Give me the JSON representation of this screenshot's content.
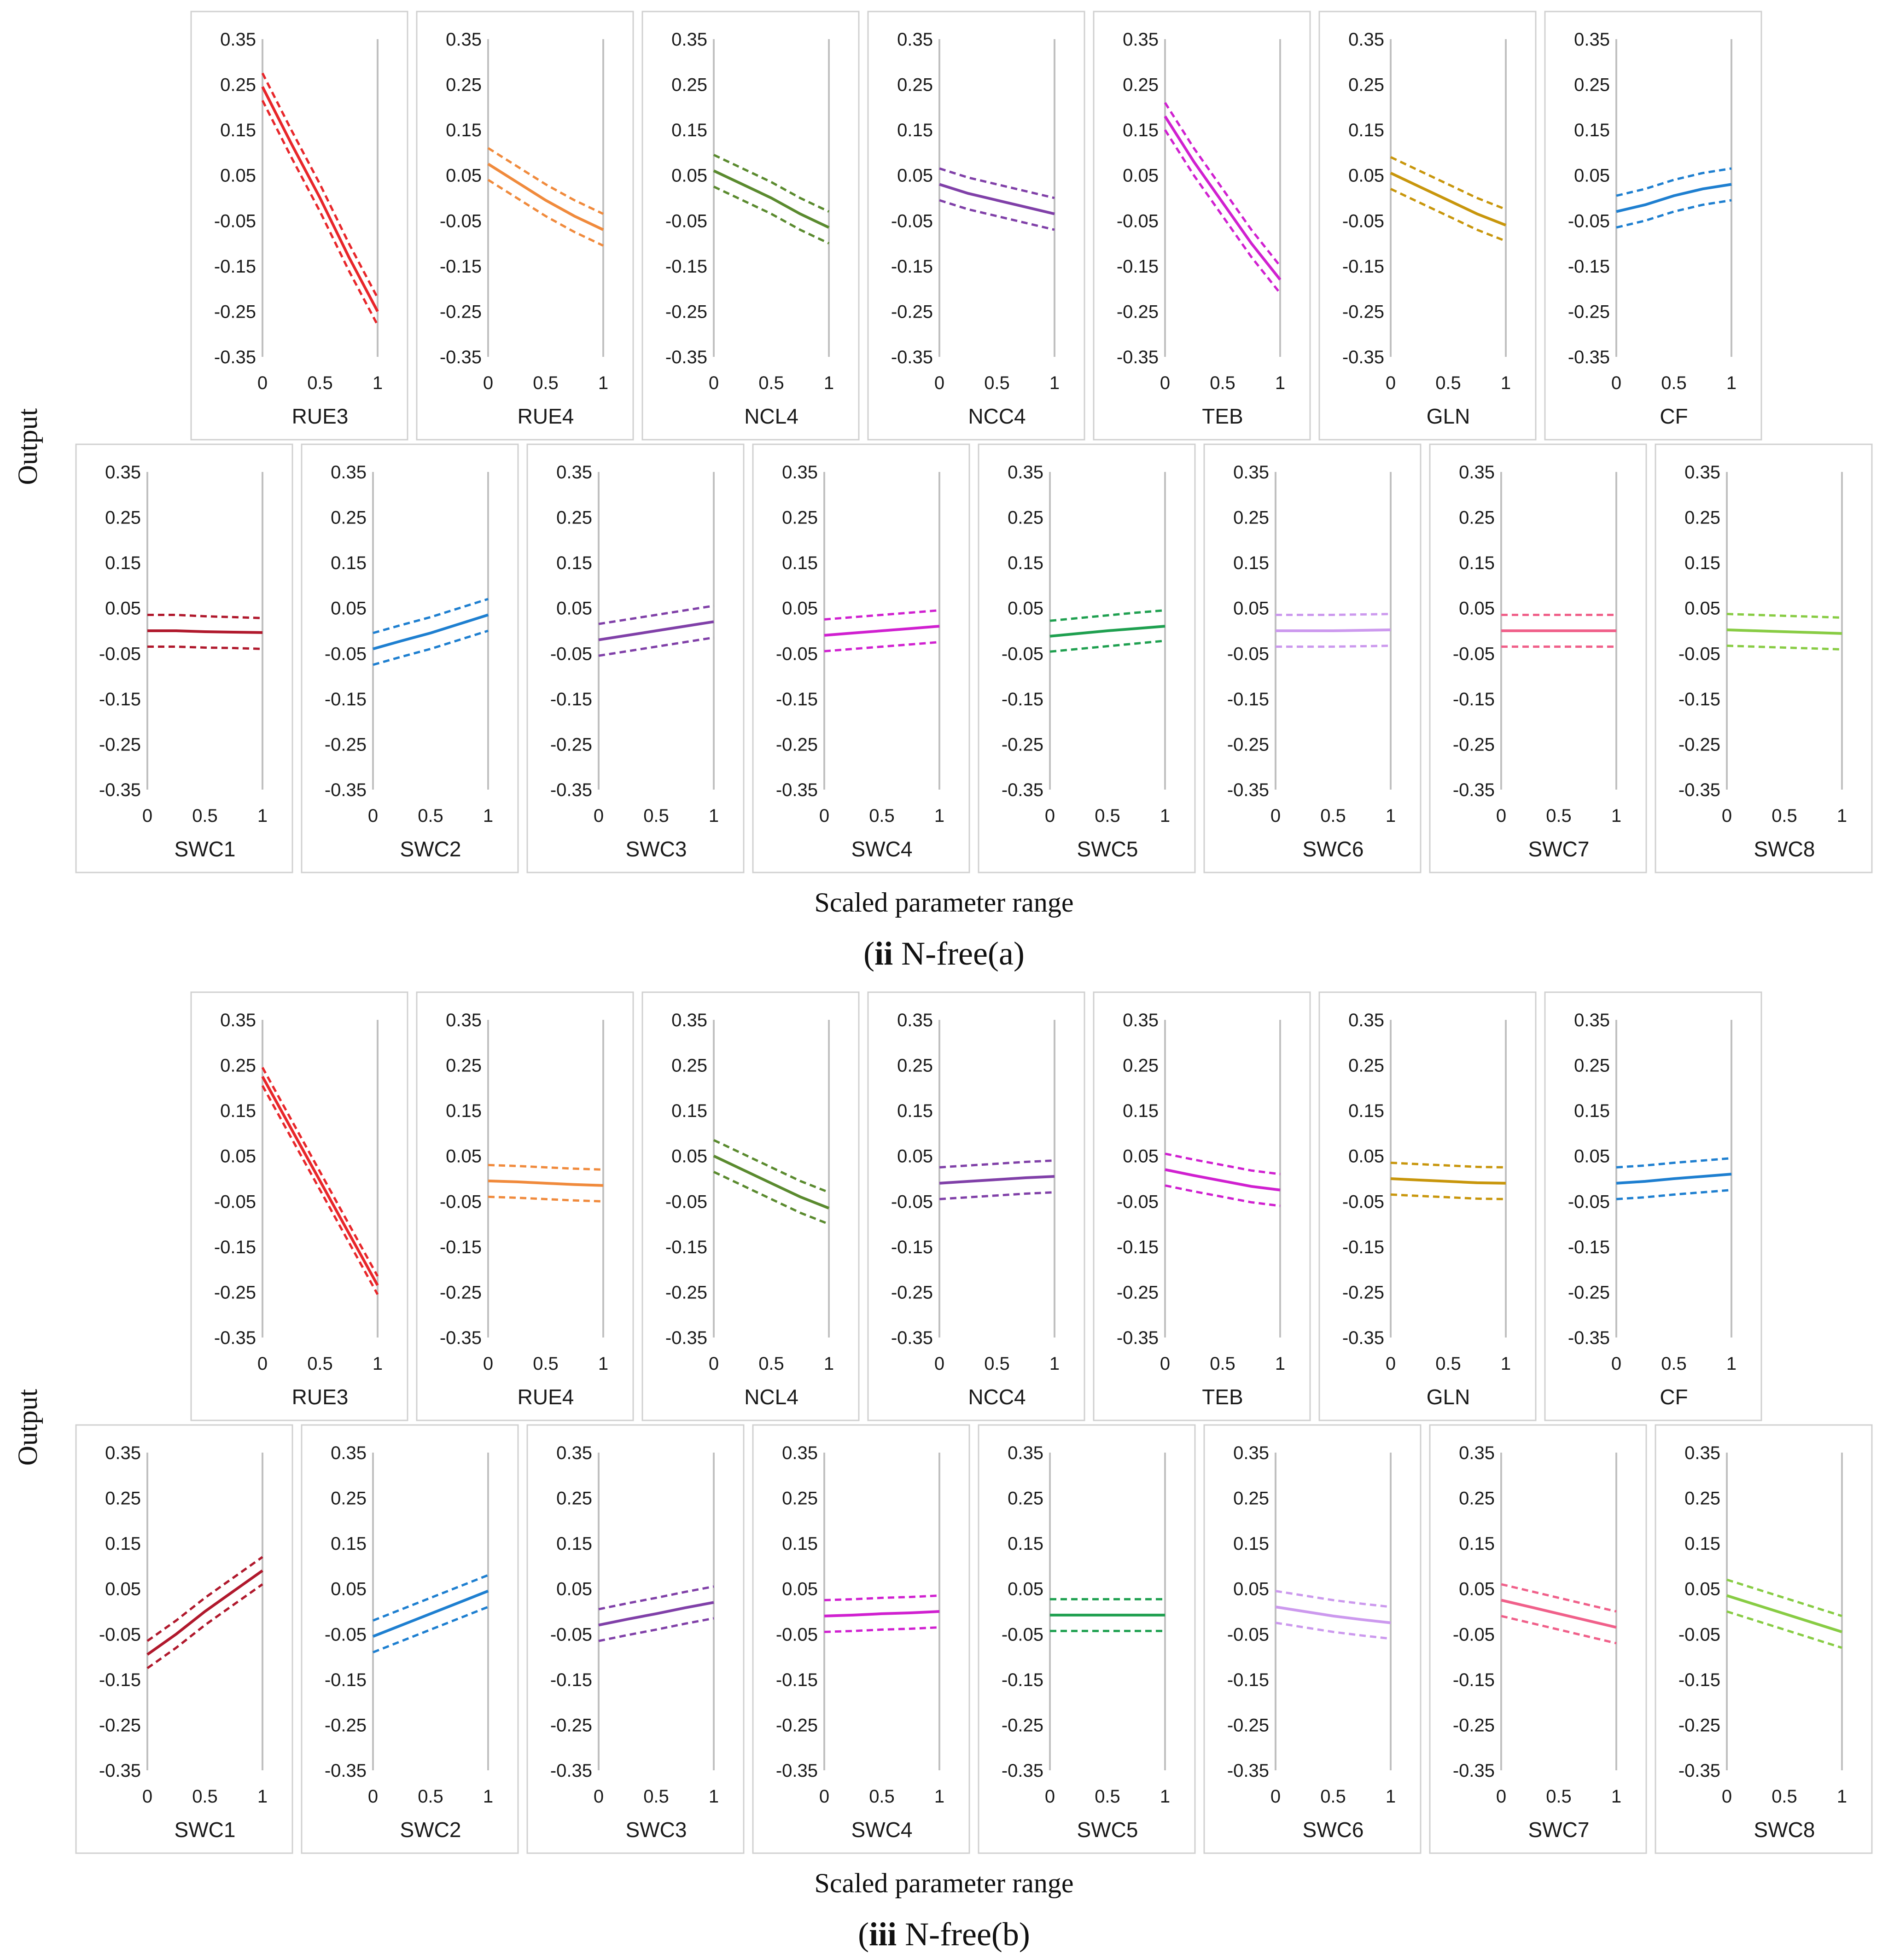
{
  "chart_data": [
    {
      "type": "line",
      "title": "(ii) N-free(a)",
      "caption_roman": "ii",
      "caption_rest": " N-free(a)",
      "ylabel": "Output",
      "xlabel": "Scaled parameter range",
      "ylim": [
        -0.35,
        0.35
      ],
      "yticks": [
        "0.35",
        "0.25",
        "0.15",
        "0.05",
        "-0.05",
        "-0.15",
        "-0.25",
        "-0.35"
      ],
      "xticks": [
        "0",
        "0.5",
        "1"
      ],
      "x": [
        0,
        0.25,
        0.5,
        0.75,
        1
      ],
      "series": [
        {
          "name": "RUE3",
          "color": "#E8262A",
          "mean": [
            0.245,
            0.12,
            0.0,
            -0.13,
            -0.25
          ],
          "upper": [
            0.275,
            0.15,
            0.03,
            -0.1,
            -0.22
          ],
          "lower": [
            0.215,
            0.09,
            -0.03,
            -0.16,
            -0.28
          ]
        },
        {
          "name": "RUE4",
          "color": "#F08A3C",
          "mean": [
            0.075,
            0.035,
            -0.005,
            -0.04,
            -0.07
          ],
          "upper": [
            0.11,
            0.07,
            0.03,
            -0.005,
            -0.035
          ],
          "lower": [
            0.04,
            0.0,
            -0.04,
            -0.075,
            -0.105
          ]
        },
        {
          "name": "NCL4",
          "color": "#5A8A2E",
          "mean": [
            0.06,
            0.03,
            0.0,
            -0.035,
            -0.065
          ],
          "upper": [
            0.095,
            0.065,
            0.035,
            0.0,
            -0.03
          ],
          "lower": [
            0.025,
            -0.005,
            -0.035,
            -0.07,
            -0.1
          ]
        },
        {
          "name": "NCC4",
          "color": "#8040A8",
          "mean": [
            0.03,
            0.01,
            -0.005,
            -0.02,
            -0.035
          ],
          "upper": [
            0.065,
            0.045,
            0.03,
            0.015,
            0.0
          ],
          "lower": [
            -0.005,
            -0.025,
            -0.04,
            -0.055,
            -0.07
          ]
        },
        {
          "name": "TEB",
          "color": "#D020D0",
          "mean": [
            0.18,
            0.08,
            -0.01,
            -0.1,
            -0.18
          ],
          "upper": [
            0.21,
            0.11,
            0.02,
            -0.07,
            -0.15
          ],
          "lower": [
            0.15,
            0.05,
            -0.04,
            -0.13,
            -0.21
          ]
        },
        {
          "name": "GLN",
          "color": "#C8960C",
          "mean": [
            0.055,
            0.025,
            -0.005,
            -0.035,
            -0.06
          ],
          "upper": [
            0.09,
            0.06,
            0.03,
            0.0,
            -0.025
          ],
          "lower": [
            0.02,
            -0.01,
            -0.04,
            -0.07,
            -0.095
          ]
        },
        {
          "name": "CF",
          "color": "#1E7FD0",
          "mean": [
            -0.03,
            -0.015,
            0.005,
            0.02,
            0.03
          ],
          "upper": [
            0.005,
            0.02,
            0.04,
            0.055,
            0.065
          ],
          "lower": [
            -0.065,
            -0.05,
            -0.03,
            -0.015,
            -0.005
          ]
        },
        {
          "name": "SWC1",
          "color": "#B0182C",
          "mean": [
            0.0,
            0.0,
            -0.002,
            -0.003,
            -0.004
          ],
          "upper": [
            0.035,
            0.035,
            0.032,
            0.03,
            0.028
          ],
          "lower": [
            -0.035,
            -0.035,
            -0.037,
            -0.038,
            -0.04
          ]
        },
        {
          "name": "SWC2",
          "color": "#1E7FD0",
          "mean": [
            -0.04,
            -0.022,
            -0.005,
            0.015,
            0.035
          ],
          "upper": [
            -0.005,
            0.013,
            0.03,
            0.05,
            0.07
          ],
          "lower": [
            -0.075,
            -0.057,
            -0.04,
            -0.02,
            0.0
          ]
        },
        {
          "name": "SWC3",
          "color": "#8040A8",
          "mean": [
            -0.02,
            -0.01,
            0.0,
            0.01,
            0.02
          ],
          "upper": [
            0.015,
            0.025,
            0.035,
            0.045,
            0.055
          ],
          "lower": [
            -0.055,
            -0.045,
            -0.035,
            -0.025,
            -0.015
          ]
        },
        {
          "name": "SWC4",
          "color": "#D020D0",
          "mean": [
            -0.01,
            -0.005,
            0.0,
            0.005,
            0.01
          ],
          "upper": [
            0.025,
            0.03,
            0.035,
            0.04,
            0.045
          ],
          "lower": [
            -0.045,
            -0.04,
            -0.035,
            -0.03,
            -0.025
          ]
        },
        {
          "name": "SWC5",
          "color": "#1FA050",
          "mean": [
            -0.012,
            -0.006,
            0.0,
            0.005,
            0.01
          ],
          "upper": [
            0.022,
            0.028,
            0.034,
            0.04,
            0.045
          ],
          "lower": [
            -0.046,
            -0.04,
            -0.034,
            -0.028,
            -0.022
          ]
        },
        {
          "name": "SWC6",
          "color": "#CC99EE",
          "mean": [
            0.0,
            0.0,
            0.0,
            0.001,
            0.002
          ],
          "upper": [
            0.035,
            0.035,
            0.035,
            0.036,
            0.037
          ],
          "lower": [
            -0.035,
            -0.035,
            -0.035,
            -0.034,
            -0.033
          ]
        },
        {
          "name": "SWC7",
          "color": "#F0608A",
          "mean": [
            0.0,
            0.0,
            0.0,
            0.0,
            0.0
          ],
          "upper": [
            0.035,
            0.035,
            0.035,
            0.035,
            0.035
          ],
          "lower": [
            -0.035,
            -0.035,
            -0.035,
            -0.035,
            -0.035
          ]
        },
        {
          "name": "SWC8",
          "color": "#88CC44",
          "mean": [
            0.002,
            0.0,
            -0.002,
            -0.004,
            -0.006
          ],
          "upper": [
            0.037,
            0.035,
            0.033,
            0.031,
            0.029
          ],
          "lower": [
            -0.033,
            -0.035,
            -0.037,
            -0.039,
            -0.041
          ]
        }
      ]
    },
    {
      "type": "line",
      "title": "(iii) N-free(b)",
      "caption_roman": "iii",
      "caption_rest": " N-free(b)",
      "ylabel": "Output",
      "xlabel": "Scaled parameter range",
      "ylim": [
        -0.35,
        0.35
      ],
      "yticks": [
        "0.35",
        "0.25",
        "0.15",
        "0.05",
        "-0.05",
        "-0.15",
        "-0.25",
        "-0.35"
      ],
      "xticks": [
        "0",
        "0.5",
        "1"
      ],
      "x": [
        0,
        0.25,
        0.5,
        0.75,
        1
      ],
      "series": [
        {
          "name": "RUE3",
          "color": "#E8262A",
          "mean": [
            0.225,
            0.11,
            -0.005,
            -0.12,
            -0.235
          ],
          "upper": [
            0.245,
            0.13,
            0.015,
            -0.1,
            -0.215
          ],
          "lower": [
            0.205,
            0.09,
            -0.025,
            -0.14,
            -0.255
          ]
        },
        {
          "name": "RUE4",
          "color": "#F08A3C",
          "mean": [
            -0.005,
            -0.007,
            -0.01,
            -0.013,
            -0.015
          ],
          "upper": [
            0.03,
            0.028,
            0.025,
            0.022,
            0.02
          ],
          "lower": [
            -0.04,
            -0.042,
            -0.045,
            -0.048,
            -0.05
          ]
        },
        {
          "name": "NCL4",
          "color": "#5A8A2E",
          "mean": [
            0.05,
            0.02,
            -0.01,
            -0.04,
            -0.065
          ],
          "upper": [
            0.085,
            0.055,
            0.025,
            -0.005,
            -0.03
          ],
          "lower": [
            0.015,
            -0.015,
            -0.045,
            -0.075,
            -0.1
          ]
        },
        {
          "name": "NCC4",
          "color": "#8040A8",
          "mean": [
            -0.01,
            -0.006,
            -0.002,
            0.002,
            0.005
          ],
          "upper": [
            0.025,
            0.029,
            0.033,
            0.037,
            0.04
          ],
          "lower": [
            -0.045,
            -0.041,
            -0.037,
            -0.033,
            -0.03
          ]
        },
        {
          "name": "TEB",
          "color": "#D020D0",
          "mean": [
            0.02,
            0.007,
            -0.005,
            -0.017,
            -0.025
          ],
          "upper": [
            0.055,
            0.042,
            0.03,
            0.018,
            0.01
          ],
          "lower": [
            -0.015,
            -0.028,
            -0.04,
            -0.052,
            -0.06
          ]
        },
        {
          "name": "GLN",
          "color": "#C8960C",
          "mean": [
            0.0,
            -0.003,
            -0.006,
            -0.009,
            -0.01
          ],
          "upper": [
            0.035,
            0.032,
            0.029,
            0.026,
            0.025
          ],
          "lower": [
            -0.035,
            -0.038,
            -0.041,
            -0.044,
            -0.045
          ]
        },
        {
          "name": "CF",
          "color": "#1E7FD0",
          "mean": [
            -0.01,
            -0.006,
            0.0,
            0.005,
            0.01
          ],
          "upper": [
            0.025,
            0.029,
            0.035,
            0.04,
            0.045
          ],
          "lower": [
            -0.045,
            -0.041,
            -0.035,
            -0.03,
            -0.025
          ]
        },
        {
          "name": "SWC1",
          "color": "#B0182C",
          "mean": [
            -0.095,
            -0.05,
            0.0,
            0.045,
            0.09
          ],
          "upper": [
            -0.065,
            -0.02,
            0.03,
            0.075,
            0.12
          ],
          "lower": [
            -0.125,
            -0.08,
            -0.03,
            0.015,
            0.06
          ]
        },
        {
          "name": "SWC2",
          "color": "#1E7FD0",
          "mean": [
            -0.055,
            -0.03,
            -0.005,
            0.02,
            0.045
          ],
          "upper": [
            -0.02,
            0.005,
            0.03,
            0.055,
            0.08
          ],
          "lower": [
            -0.09,
            -0.065,
            -0.04,
            -0.015,
            0.01
          ]
        },
        {
          "name": "SWC3",
          "color": "#8040A8",
          "mean": [
            -0.03,
            -0.017,
            -0.005,
            0.008,
            0.02
          ],
          "upper": [
            0.005,
            0.018,
            0.03,
            0.043,
            0.055
          ],
          "lower": [
            -0.065,
            -0.052,
            -0.04,
            -0.027,
            -0.015
          ]
        },
        {
          "name": "SWC4",
          "color": "#D020D0",
          "mean": [
            -0.01,
            -0.008,
            -0.005,
            -0.003,
            0.0
          ],
          "upper": [
            0.025,
            0.027,
            0.03,
            0.032,
            0.035
          ],
          "lower": [
            -0.045,
            -0.043,
            -0.04,
            -0.038,
            -0.035
          ]
        },
        {
          "name": "SWC5",
          "color": "#1FA050",
          "mean": [
            -0.008,
            -0.008,
            -0.008,
            -0.008,
            -0.008
          ],
          "upper": [
            0.027,
            0.027,
            0.027,
            0.027,
            0.027
          ],
          "lower": [
            -0.043,
            -0.043,
            -0.043,
            -0.043,
            -0.043
          ]
        },
        {
          "name": "SWC6",
          "color": "#CC99EE",
          "mean": [
            0.01,
            0.0,
            -0.01,
            -0.018,
            -0.025
          ],
          "upper": [
            0.045,
            0.035,
            0.025,
            0.017,
            0.01
          ],
          "lower": [
            -0.025,
            -0.035,
            -0.045,
            -0.053,
            -0.06
          ]
        },
        {
          "name": "SWC7",
          "color": "#F0608A",
          "mean": [
            0.025,
            0.01,
            -0.005,
            -0.02,
            -0.035
          ],
          "upper": [
            0.06,
            0.045,
            0.03,
            0.015,
            0.0
          ],
          "lower": [
            -0.01,
            -0.025,
            -0.04,
            -0.055,
            -0.07
          ]
        },
        {
          "name": "SWC8",
          "color": "#88CC44",
          "mean": [
            0.035,
            0.015,
            -0.005,
            -0.025,
            -0.045
          ],
          "upper": [
            0.07,
            0.05,
            0.03,
            0.01,
            -0.01
          ],
          "lower": [
            0.0,
            -0.02,
            -0.04,
            -0.06,
            -0.08
          ]
        }
      ]
    }
  ]
}
